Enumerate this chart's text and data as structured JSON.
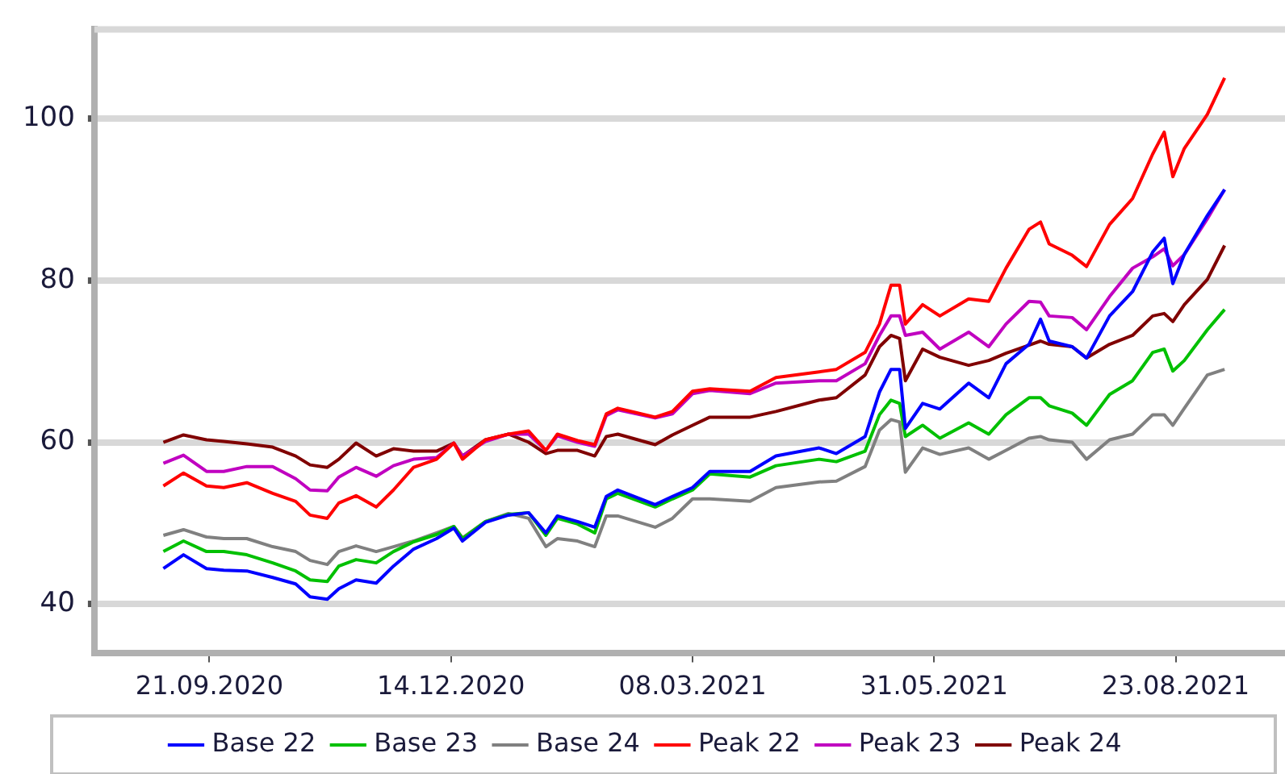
{
  "chart_data": {
    "type": "line",
    "x": [
      "2020-09-05",
      "2020-09-12",
      "2020-09-20",
      "2020-09-26",
      "2020-10-04",
      "2020-10-13",
      "2020-10-21",
      "2020-10-26",
      "2020-11-01",
      "2020-11-05",
      "2020-11-11",
      "2020-11-18",
      "2020-11-24",
      "2020-12-01",
      "2020-12-09",
      "2020-12-15",
      "2020-12-18",
      "2020-12-26",
      "2021-01-03",
      "2021-01-10",
      "2021-01-16",
      "2021-01-20",
      "2021-01-27",
      "2021-02-02",
      "2021-02-06",
      "2021-02-10",
      "2021-02-23",
      "2021-03-01",
      "2021-03-08",
      "2021-03-14",
      "2021-03-28",
      "2021-04-06",
      "2021-04-21",
      "2021-04-27",
      "2021-05-07",
      "2021-05-12",
      "2021-05-16",
      "2021-05-19",
      "2021-05-21",
      "2021-05-27",
      "2021-06-02",
      "2021-06-12",
      "2021-06-19",
      "2021-06-25",
      "2021-07-03",
      "2021-07-07",
      "2021-07-10",
      "2021-07-18",
      "2021-07-23",
      "2021-07-31",
      "2021-08-08",
      "2021-08-15",
      "2021-08-19",
      "2021-08-22",
      "2021-08-26",
      "2021-09-03",
      "2021-09-09"
    ],
    "series": [
      {
        "name": "Base 22",
        "color": "#0000ff",
        "values": [
          44.4,
          46.1,
          44.4,
          44.2,
          44.1,
          43.3,
          42.5,
          40.9,
          40.6,
          41.9,
          43.0,
          42.6,
          44.7,
          46.8,
          48.1,
          49.4,
          47.8,
          50.1,
          51.0,
          51.3,
          48.8,
          50.9,
          50.2,
          49.5,
          53.3,
          54.1,
          52.3,
          53.3,
          54.4,
          56.4,
          56.4,
          58.3,
          59.3,
          58.6,
          60.7,
          66.2,
          69.0,
          69.0,
          61.7,
          64.8,
          64.1,
          67.3,
          65.5,
          69.7,
          72.1,
          75.2,
          72.5,
          71.8,
          70.4,
          75.6,
          78.6,
          83.5,
          85.2,
          79.6,
          83.2,
          88.0,
          91.2
        ]
      },
      {
        "name": "Base 23",
        "color": "#00c000",
        "values": [
          46.5,
          47.8,
          46.5,
          46.5,
          46.1,
          45.1,
          44.1,
          43.0,
          42.8,
          44.7,
          45.5,
          45.1,
          46.5,
          47.7,
          48.6,
          49.6,
          48.1,
          50.2,
          51.1,
          51.3,
          48.5,
          50.6,
          49.9,
          48.8,
          53.0,
          53.7,
          52.0,
          53.0,
          54.1,
          56.1,
          55.7,
          57.1,
          57.9,
          57.6,
          58.9,
          63.4,
          65.2,
          64.8,
          60.7,
          62.1,
          60.5,
          62.4,
          61.0,
          63.4,
          65.5,
          65.5,
          64.5,
          63.6,
          62.1,
          65.9,
          67.6,
          71.1,
          71.5,
          68.8,
          70.1,
          73.9,
          76.4
        ]
      },
      {
        "name": "Base 24",
        "color": "#808080",
        "values": [
          48.5,
          49.2,
          48.3,
          48.1,
          48.1,
          47.1,
          46.5,
          45.4,
          44.9,
          46.5,
          47.2,
          46.5,
          47.1,
          47.8,
          48.8,
          49.6,
          48.2,
          50.2,
          51.2,
          50.6,
          47.1,
          48.1,
          47.8,
          47.1,
          50.9,
          50.9,
          49.5,
          50.6,
          53.0,
          53.0,
          52.7,
          54.4,
          55.1,
          55.2,
          57.0,
          61.5,
          62.8,
          62.5,
          56.3,
          59.3,
          58.5,
          59.3,
          57.9,
          59.0,
          60.5,
          60.7,
          60.3,
          60.0,
          57.9,
          60.3,
          61.0,
          63.4,
          63.4,
          62.1,
          64.2,
          68.3,
          69.0
        ]
      },
      {
        "name": "Peak 22",
        "color": "#ff0000",
        "values": [
          54.6,
          56.2,
          54.6,
          54.4,
          55.0,
          53.7,
          52.7,
          51.0,
          50.6,
          52.5,
          53.4,
          52.0,
          54.1,
          56.9,
          57.9,
          59.9,
          57.9,
          60.3,
          61.0,
          61.4,
          59.0,
          61.0,
          60.2,
          59.7,
          63.5,
          64.2,
          63.1,
          63.8,
          66.3,
          66.6,
          66.3,
          68.0,
          68.7,
          69.0,
          71.1,
          74.6,
          79.4,
          79.4,
          74.6,
          77.0,
          75.6,
          77.7,
          77.4,
          81.5,
          86.3,
          87.2,
          84.5,
          83.1,
          81.7,
          86.9,
          90.1,
          95.6,
          98.3,
          92.8,
          96.3,
          100.5,
          105.0
        ]
      },
      {
        "name": "Peak 23",
        "color": "#c000c0",
        "values": [
          57.4,
          58.4,
          56.4,
          56.4,
          57.0,
          57.0,
          55.5,
          54.1,
          54.0,
          55.7,
          56.9,
          55.8,
          57.1,
          57.9,
          58.1,
          59.9,
          58.3,
          60.1,
          61.0,
          61.0,
          59.0,
          60.8,
          60.0,
          59.5,
          63.3,
          64.0,
          63.0,
          63.5,
          66.0,
          66.4,
          66.0,
          67.3,
          67.6,
          67.6,
          69.7,
          73.2,
          75.6,
          75.6,
          73.2,
          73.6,
          71.5,
          73.6,
          71.8,
          74.6,
          77.4,
          77.3,
          75.6,
          75.4,
          73.9,
          78.0,
          81.5,
          82.9,
          83.9,
          81.8,
          83.2,
          87.6,
          91.2
        ]
      },
      {
        "name": "Peak 24",
        "color": "#800000",
        "values": [
          60.0,
          60.9,
          60.3,
          60.1,
          59.8,
          59.4,
          58.3,
          57.2,
          56.9,
          57.9,
          59.9,
          58.3,
          59.2,
          58.9,
          58.9,
          59.9,
          58.3,
          60.3,
          61.0,
          60.0,
          58.6,
          59.0,
          59.0,
          58.3,
          60.7,
          61.0,
          59.7,
          60.9,
          62.1,
          63.1,
          63.1,
          63.8,
          65.2,
          65.5,
          68.3,
          71.8,
          73.2,
          72.8,
          67.6,
          71.5,
          70.5,
          69.5,
          70.1,
          71.0,
          72.0,
          72.5,
          72.1,
          71.8,
          70.4,
          72.1,
          73.2,
          75.6,
          75.9,
          74.9,
          77.0,
          80.1,
          84.3
        ]
      }
    ],
    "xlim": [
      "2020-08-12",
      "2021-09-30"
    ],
    "xticks": [
      {
        "value": "2020-09-21",
        "label": "21.09.2020"
      },
      {
        "value": "2020-12-14",
        "label": "14.12.2020"
      },
      {
        "value": "2021-03-08",
        "label": "08.03.2021"
      },
      {
        "value": "2021-05-31",
        "label": "31.05.2021"
      },
      {
        "value": "2021-08-23",
        "label": "23.08.2021"
      }
    ],
    "ylim": [
      34,
      111
    ],
    "yticks": [
      40,
      60,
      80,
      100
    ],
    "grid": "y",
    "legend": "bottom",
    "line_style": "solid"
  }
}
